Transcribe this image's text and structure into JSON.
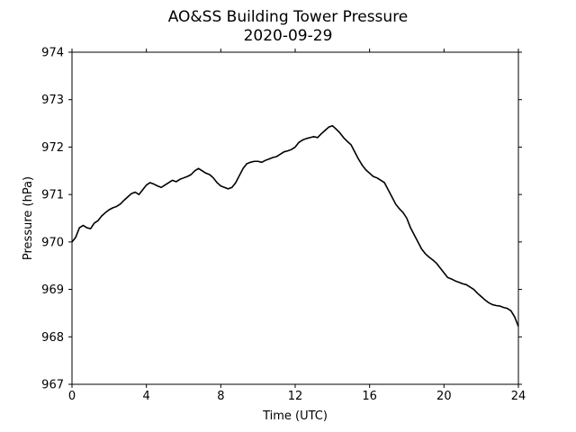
{
  "chart_data": {
    "type": "line",
    "title": "AO&SS Building Tower Pressure",
    "subtitle": "2020-09-29",
    "xlabel": "Time (UTC)",
    "ylabel": "Pressure (hPa)",
    "xlim": [
      0,
      24
    ],
    "ylim": [
      967,
      974
    ],
    "xticks": [
      0,
      4,
      8,
      12,
      16,
      20,
      24
    ],
    "yticks": [
      967,
      968,
      969,
      970,
      971,
      972,
      973,
      974
    ],
    "grid": false,
    "legend": "none",
    "line_color": "#000000",
    "series": [
      {
        "x": [
          0.0,
          0.2,
          0.4,
          0.6,
          0.8,
          1.0,
          1.2,
          1.4,
          1.6,
          1.8,
          2.0,
          2.2,
          2.4,
          2.6,
          2.8,
          3.0,
          3.2,
          3.4,
          3.6,
          3.8,
          4.0,
          4.2,
          4.4,
          4.6,
          4.8,
          5.0,
          5.2,
          5.4,
          5.6,
          5.8,
          6.0,
          6.2,
          6.4,
          6.6,
          6.8,
          7.0,
          7.2,
          7.4,
          7.6,
          7.8,
          8.0,
          8.2,
          8.4,
          8.6,
          8.8,
          9.0,
          9.2,
          9.4,
          9.6,
          9.8,
          10.0,
          10.2,
          10.4,
          10.6,
          10.8,
          11.0,
          11.2,
          11.4,
          11.6,
          11.8,
          12.0,
          12.2,
          12.4,
          12.6,
          12.8,
          13.0,
          13.2,
          13.4,
          13.6,
          13.8,
          14.0,
          14.2,
          14.4,
          14.6,
          14.8,
          15.0,
          15.2,
          15.4,
          15.6,
          15.8,
          16.0,
          16.2,
          16.4,
          16.6,
          16.8,
          17.0,
          17.2,
          17.4,
          17.6,
          17.8,
          18.0,
          18.2,
          18.4,
          18.6,
          18.8,
          19.0,
          19.2,
          19.4,
          19.6,
          19.8,
          20.0,
          20.2,
          20.4,
          20.6,
          20.8,
          21.0,
          21.2,
          21.4,
          21.6,
          21.8,
          22.0,
          22.2,
          22.4,
          22.6,
          22.8,
          23.0,
          23.2,
          23.4,
          23.6,
          23.8,
          24.0
        ],
        "values": [
          970.0,
          970.1,
          970.3,
          970.35,
          970.3,
          970.28,
          970.4,
          970.45,
          970.55,
          970.62,
          970.68,
          970.72,
          970.75,
          970.8,
          970.88,
          970.95,
          971.02,
          971.05,
          971.0,
          971.1,
          971.2,
          971.25,
          971.22,
          971.18,
          971.15,
          971.2,
          971.25,
          971.3,
          971.27,
          971.32,
          971.35,
          971.38,
          971.42,
          971.5,
          971.55,
          971.5,
          971.45,
          971.42,
          971.35,
          971.25,
          971.18,
          971.15,
          971.12,
          971.15,
          971.25,
          971.4,
          971.55,
          971.65,
          971.68,
          971.7,
          971.7,
          971.68,
          971.72,
          971.75,
          971.78,
          971.8,
          971.85,
          971.9,
          971.92,
          971.95,
          972.0,
          972.1,
          972.15,
          972.18,
          972.2,
          972.22,
          972.2,
          972.28,
          972.35,
          972.42,
          972.45,
          972.38,
          972.3,
          972.2,
          972.12,
          972.05,
          971.9,
          971.75,
          971.62,
          971.52,
          971.45,
          971.38,
          971.35,
          971.3,
          971.25,
          971.1,
          970.95,
          970.8,
          970.7,
          970.62,
          970.5,
          970.3,
          970.15,
          970.0,
          969.85,
          969.75,
          969.68,
          969.62,
          969.55,
          969.45,
          969.35,
          969.25,
          969.22,
          969.18,
          969.15,
          969.12,
          969.1,
          969.05,
          969.0,
          968.92,
          968.85,
          968.78,
          968.72,
          968.68,
          968.66,
          968.65,
          968.62,
          968.6,
          968.55,
          968.42,
          968.22
        ]
      }
    ]
  }
}
